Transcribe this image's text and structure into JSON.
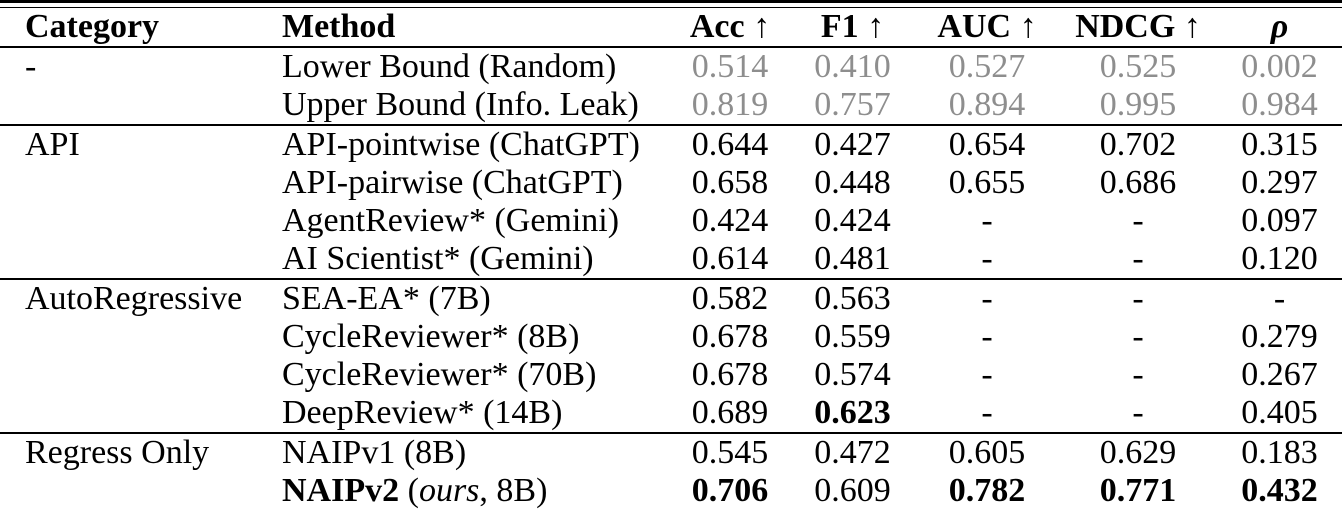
{
  "table": {
    "muted_value_color": "#8e8e8e",
    "columns": [
      {
        "key": "category",
        "label": "Category",
        "align": "left"
      },
      {
        "key": "method",
        "label": "Method",
        "align": "left"
      },
      {
        "key": "acc",
        "label": "Acc ↑",
        "align": "center"
      },
      {
        "key": "f1",
        "label": "F1 ↑",
        "align": "center"
      },
      {
        "key": "auc",
        "label": "AUC ↑",
        "align": "center"
      },
      {
        "key": "ndcg",
        "label": "NDCG ↑",
        "align": "center"
      },
      {
        "key": "rho",
        "label": "ρ",
        "align": "center",
        "italic": true
      }
    ],
    "sections": [
      {
        "category": "-",
        "muted": true,
        "rows": [
          {
            "method": "Lower Bound (Random)",
            "values": [
              "0.514",
              "0.410",
              "0.527",
              "0.525",
              "0.002"
            ]
          },
          {
            "method": "Upper Bound (Info. Leak)",
            "values": [
              "0.819",
              "0.757",
              "0.894",
              "0.995",
              "0.984"
            ]
          }
        ]
      },
      {
        "category": "API",
        "muted": false,
        "rows": [
          {
            "method": "API-pointwise (ChatGPT)",
            "values": [
              "0.644",
              "0.427",
              "0.654",
              "0.702",
              "0.315"
            ]
          },
          {
            "method": "API-pairwise (ChatGPT)",
            "values": [
              "0.658",
              "0.448",
              "0.655",
              "0.686",
              "0.297"
            ]
          },
          {
            "method": "AgentReview* (Gemini)",
            "values": [
              "0.424",
              "0.424",
              "-",
              "-",
              "0.097"
            ]
          },
          {
            "method": "AI Scientist* (Gemini)",
            "values": [
              "0.614",
              "0.481",
              "-",
              "-",
              "0.120"
            ]
          }
        ]
      },
      {
        "category": "AutoRegressive",
        "muted": false,
        "rows": [
          {
            "method": "SEA-EA* (7B)",
            "values": [
              "0.582",
              "0.563",
              "-",
              "-",
              "-"
            ]
          },
          {
            "method": "CycleReviewer* (8B)",
            "values": [
              "0.678",
              "0.559",
              "-",
              "-",
              "0.279"
            ]
          },
          {
            "method": "CycleReviewer* (70B)",
            "values": [
              "0.678",
              "0.574",
              "-",
              "-",
              "0.267"
            ]
          },
          {
            "method": "DeepReview* (14B)",
            "values": [
              "0.689",
              "0.623",
              "-",
              "-",
              "0.405"
            ],
            "bold_values": [
              1
            ]
          }
        ]
      },
      {
        "category": "Regress Only",
        "muted": false,
        "rows": [
          {
            "method": "NAIPv1 (8B)",
            "values": [
              "0.545",
              "0.472",
              "0.605",
              "0.629",
              "0.183"
            ]
          },
          {
            "method_parts": [
              {
                "text": "NAIPv2",
                "bold": true
              },
              {
                "text": " ("
              },
              {
                "text": "ours",
                "italic": true
              },
              {
                "text": ", 8B)"
              }
            ],
            "values": [
              "0.706",
              "0.609",
              "0.782",
              "0.771",
              "0.432"
            ],
            "bold_values": [
              0,
              2,
              3,
              4
            ]
          }
        ]
      }
    ]
  }
}
